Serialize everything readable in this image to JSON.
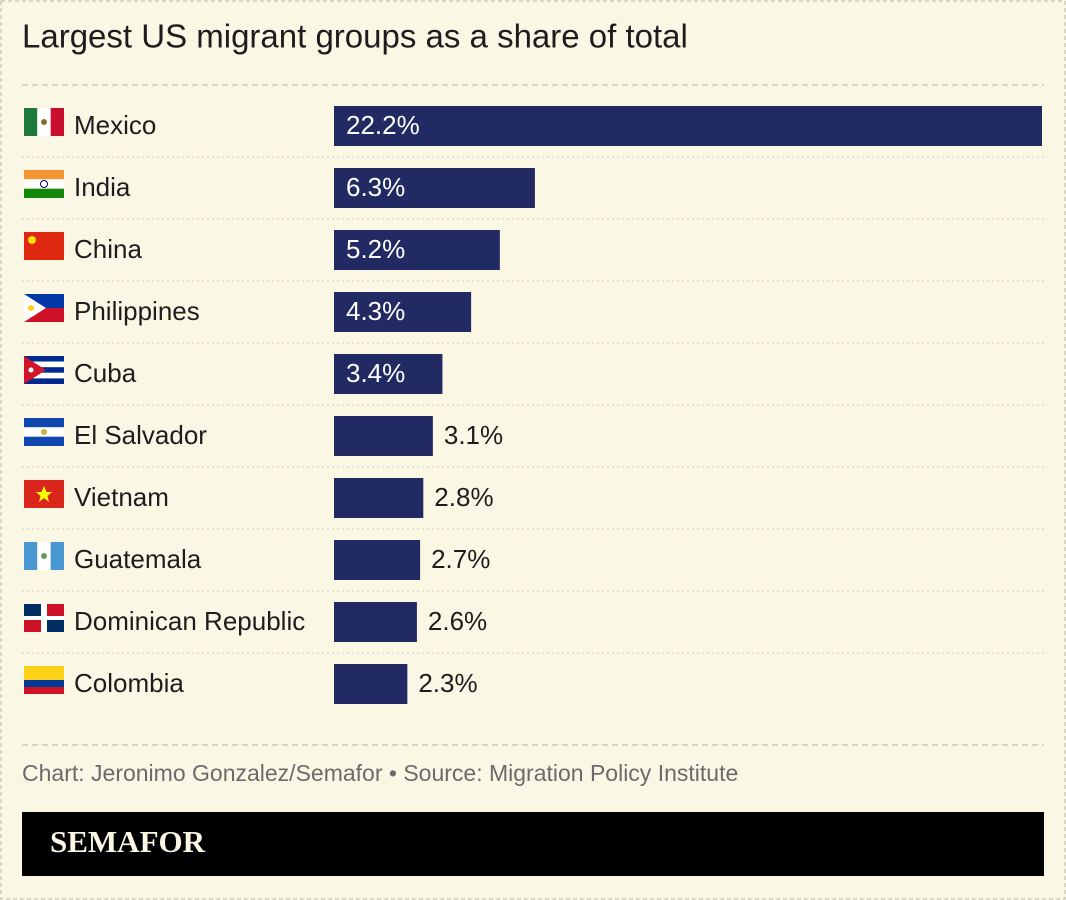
{
  "chart_data": {
    "type": "hbar",
    "title": "Largest US migrant groups as a share of total",
    "categories": [
      "Mexico",
      "India",
      "China",
      "Philippines",
      "Cuba",
      "El Salvador",
      "Vietnam",
      "Guatemala",
      "Dominican Republic",
      "Colombia"
    ],
    "values": [
      22.2,
      6.3,
      5.2,
      4.3,
      3.4,
      3.1,
      2.8,
      2.7,
      2.6,
      2.3
    ],
    "value_labels": [
      "22.2%",
      "6.3%",
      "5.2%",
      "4.3%",
      "3.4%",
      "3.1%",
      "2.8%",
      "2.7%",
      "2.6%",
      "2.3%"
    ],
    "color": "#222a64",
    "source": "Chart: Jeronimo Gonzalez/Semafor • Source: Migration Policy Institute",
    "brand": "SEMAFOR"
  }
}
